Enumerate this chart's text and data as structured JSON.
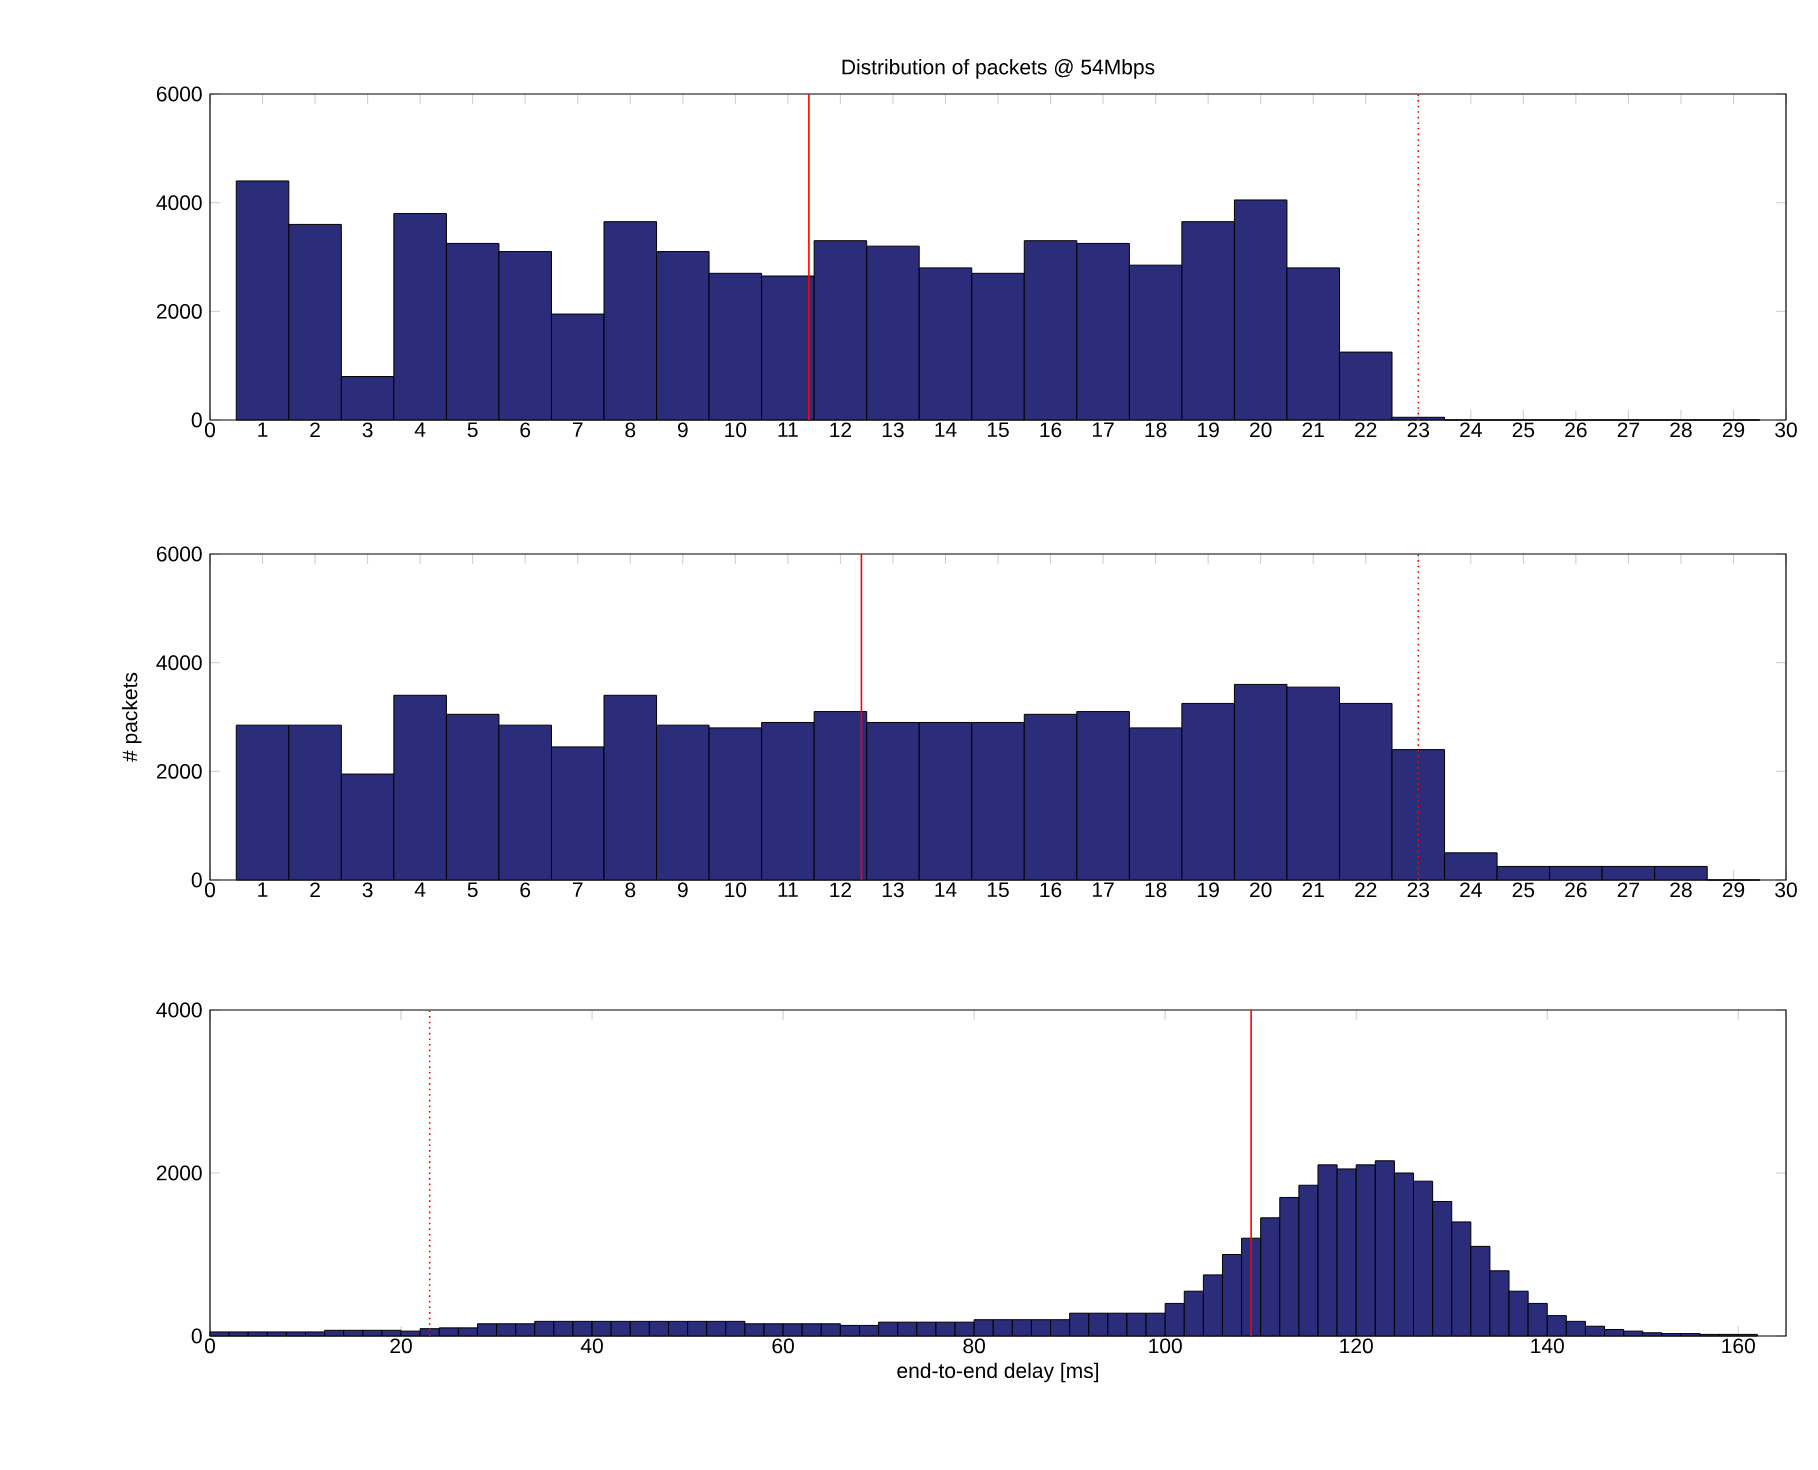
{
  "chart_data": [
    {
      "type": "histogram",
      "title": "Distribution of packets @ 54Mbps",
      "color": "#2b2d7b",
      "bins": [
        0.5,
        1.5,
        2.5,
        3.5,
        4.5,
        5.5,
        6.5,
        7.5,
        8.5,
        9.5,
        10.5,
        11.5,
        12.5,
        13.5,
        14.5,
        15.5,
        16.5,
        17.5,
        18.5,
        19.5,
        20.5,
        21.5,
        22.5,
        23.5,
        24.5,
        25.5,
        26.5,
        27.5,
        28.5,
        29.5
      ],
      "values": [
        4400,
        3600,
        800,
        3800,
        3250,
        3100,
        1950,
        3650,
        3100,
        2700,
        2650,
        3300,
        3200,
        2800,
        2700,
        3300,
        3250,
        2850,
        3650,
        4050,
        2800,
        1250,
        50,
        0,
        0,
        0,
        0,
        0,
        0
      ],
      "xlim": [
        0,
        30
      ],
      "xticks": [
        0,
        1,
        2,
        3,
        4,
        5,
        6,
        7,
        8,
        9,
        10,
        11,
        12,
        13,
        14,
        15,
        16,
        17,
        18,
        19,
        20,
        21,
        22,
        23,
        24,
        25,
        26,
        27,
        28,
        29,
        30
      ],
      "ylim": [
        0,
        6000
      ],
      "yticks": [
        0,
        2000,
        4000,
        6000
      ],
      "ref_lines": [
        {
          "axis": "x",
          "value": 11.4,
          "color": "#ff0000",
          "line_style": "solid"
        },
        {
          "axis": "x",
          "value": 23,
          "color": "#ff0000",
          "line_style": "dotted"
        }
      ]
    },
    {
      "type": "histogram",
      "ylabel": "# packets",
      "color": "#2b2d7b",
      "bins": [
        0.5,
        1.5,
        2.5,
        3.5,
        4.5,
        5.5,
        6.5,
        7.5,
        8.5,
        9.5,
        10.5,
        11.5,
        12.5,
        13.5,
        14.5,
        15.5,
        16.5,
        17.5,
        18.5,
        19.5,
        20.5,
        21.5,
        22.5,
        23.5,
        24.5,
        25.5,
        26.5,
        27.5,
        28.5,
        29.5
      ],
      "values": [
        2850,
        2850,
        1950,
        3400,
        3050,
        2850,
        2450,
        3400,
        2850,
        2800,
        2900,
        3100,
        2900,
        2900,
        2900,
        3050,
        3100,
        2800,
        3250,
        3600,
        3550,
        3250,
        2400,
        500,
        250,
        250,
        250,
        250,
        0
      ],
      "xlim": [
        0,
        30
      ],
      "xticks": [
        0,
        1,
        2,
        3,
        4,
        5,
        6,
        7,
        8,
        9,
        10,
        11,
        12,
        13,
        14,
        15,
        16,
        17,
        18,
        19,
        20,
        21,
        22,
        23,
        24,
        25,
        26,
        27,
        28,
        29,
        30
      ],
      "ylim": [
        0,
        6000
      ],
      "yticks": [
        0,
        2000,
        4000,
        6000
      ],
      "ref_lines": [
        {
          "axis": "x",
          "value": 12.4,
          "color": "#ff0000",
          "line_style": "solid"
        },
        {
          "axis": "x",
          "value": 23,
          "color": "#ff0000",
          "line_style": "dotted"
        }
      ]
    },
    {
      "type": "histogram",
      "xlabel": "end-to-end delay [ms]",
      "color": "#2b2d7b",
      "bins": [
        0,
        2,
        4,
        6,
        8,
        10,
        12,
        14,
        16,
        18,
        20,
        22,
        24,
        26,
        28,
        30,
        32,
        34,
        36,
        38,
        40,
        42,
        44,
        46,
        48,
        50,
        52,
        54,
        56,
        58,
        60,
        62,
        64,
        66,
        68,
        70,
        72,
        74,
        76,
        78,
        80,
        82,
        84,
        86,
        88,
        90,
        92,
        94,
        96,
        98,
        100,
        102,
        104,
        106,
        108,
        110,
        112,
        114,
        116,
        118,
        120,
        122,
        124,
        126,
        128,
        130,
        132,
        134,
        136,
        138,
        140,
        142,
        144,
        146,
        148,
        150,
        152,
        154,
        156,
        158,
        160,
        162
      ],
      "values": [
        50,
        50,
        50,
        50,
        50,
        50,
        70,
        70,
        70,
        70,
        60,
        90,
        100,
        100,
        150,
        150,
        150,
        180,
        180,
        180,
        180,
        180,
        180,
        180,
        180,
        180,
        180,
        180,
        150,
        150,
        150,
        150,
        150,
        130,
        130,
        170,
        170,
        170,
        170,
        170,
        200,
        200,
        200,
        200,
        200,
        280,
        280,
        280,
        280,
        280,
        400,
        550,
        750,
        1000,
        1200,
        1450,
        1700,
        1850,
        2100,
        2050,
        2100,
        2150,
        2000,
        1900,
        1650,
        1400,
        1100,
        800,
        550,
        400,
        250,
        180,
        120,
        80,
        60,
        40,
        30,
        30,
        20,
        20,
        20
      ],
      "xlim": [
        0,
        165
      ],
      "xticks": [
        0,
        20,
        40,
        60,
        80,
        100,
        120,
        140,
        160
      ],
      "ylim": [
        0,
        4000
      ],
      "yticks": [
        0,
        2000,
        4000
      ],
      "ref_lines": [
        {
          "axis": "x",
          "value": 109,
          "color": "#ff0000",
          "line_style": "solid"
        },
        {
          "axis": "x",
          "value": 23,
          "color": "#ff0000",
          "line_style": "dotted"
        }
      ]
    }
  ]
}
